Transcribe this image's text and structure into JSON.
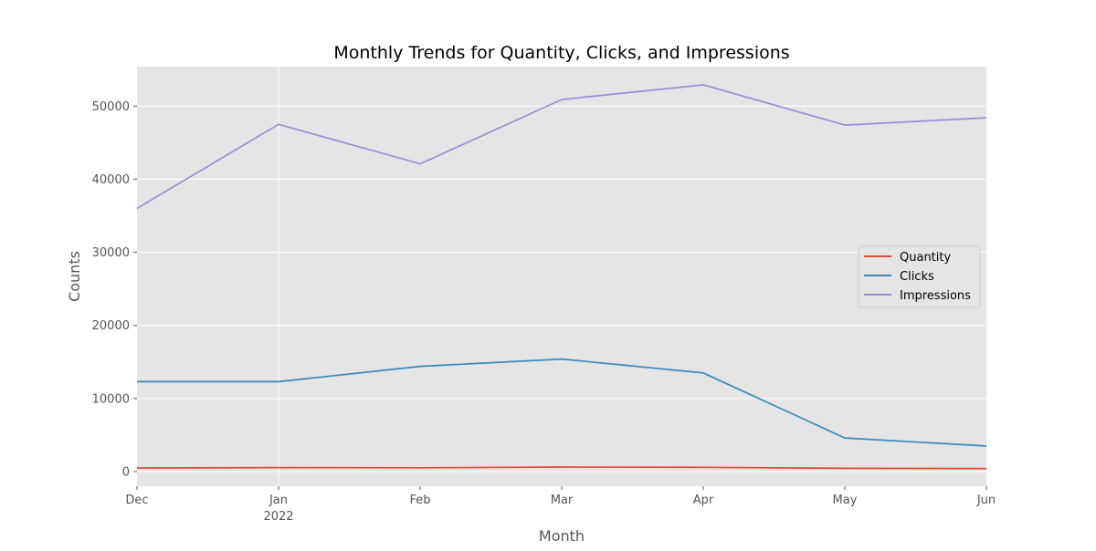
{
  "chart_data": {
    "type": "line",
    "title": "Monthly Trends for Quantity, Clicks, and Impressions",
    "xlabel": "Month",
    "ylabel": "Counts",
    "categories": [
      "Dec",
      "Jan",
      "Feb",
      "Mar",
      "Apr",
      "May",
      "Jun"
    ],
    "year_label": "2022",
    "x": [
      "2021-12",
      "2022-01",
      "2022-02",
      "2022-03",
      "2022-04",
      "2022-05",
      "2022-06"
    ],
    "ylim": [
      -2000,
      55400
    ],
    "yticks": [
      0,
      10000,
      20000,
      30000,
      40000,
      50000
    ],
    "grid": true,
    "legend_position": "center-right",
    "series": [
      {
        "name": "Quantity",
        "color": "#E24A33",
        "values": [
          500,
          550,
          520,
          620,
          580,
          450,
          420
        ]
      },
      {
        "name": "Clicks",
        "color": "#348ABD",
        "values": [
          12300,
          12300,
          14400,
          15400,
          13500,
          4600,
          3500
        ]
      },
      {
        "name": "Impressions",
        "color": "#988ED5",
        "values": [
          36000,
          47500,
          42100,
          50900,
          52900,
          47400,
          48400
        ]
      }
    ]
  }
}
